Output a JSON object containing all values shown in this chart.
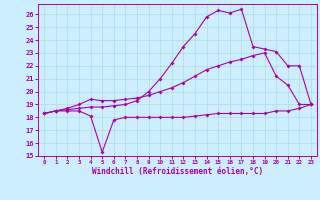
{
  "xlabel": "Windchill (Refroidissement éolien,°C)",
  "bg_color": "#cceeff",
  "line_color": "#aa00aa",
  "grid_color": "#aadddd",
  "xlim": [
    -0.5,
    23.5
  ],
  "ylim": [
    15,
    26.8
  ],
  "xticks": [
    0,
    1,
    2,
    3,
    4,
    5,
    6,
    7,
    8,
    9,
    10,
    11,
    12,
    13,
    14,
    15,
    16,
    17,
    18,
    19,
    20,
    21,
    22,
    23
  ],
  "yticks": [
    15,
    16,
    17,
    18,
    19,
    20,
    21,
    22,
    23,
    24,
    25,
    26
  ],
  "line1_x": [
    0,
    1,
    2,
    3,
    4,
    5,
    6,
    7,
    8,
    9,
    10,
    11,
    12,
    13,
    14,
    15,
    16,
    17,
    18,
    19,
    20,
    21,
    22,
    23
  ],
  "line1_y": [
    18.3,
    18.5,
    18.5,
    18.5,
    18.1,
    15.3,
    17.8,
    18.0,
    18.0,
    18.0,
    18.0,
    18.0,
    18.0,
    18.1,
    18.2,
    18.3,
    18.3,
    18.3,
    18.3,
    18.3,
    18.5,
    18.5,
    18.7,
    19.0
  ],
  "line2_x": [
    0,
    1,
    2,
    3,
    4,
    5,
    6,
    7,
    8,
    9,
    10,
    11,
    12,
    13,
    14,
    15,
    16,
    17,
    18,
    19,
    20,
    21,
    22,
    23
  ],
  "line2_y": [
    18.3,
    18.5,
    18.7,
    19.0,
    19.4,
    19.3,
    19.3,
    19.4,
    19.5,
    19.7,
    20.0,
    20.3,
    20.7,
    21.2,
    21.7,
    22.0,
    22.3,
    22.5,
    22.8,
    23.0,
    21.2,
    20.5,
    19.0,
    19.0
  ],
  "line3_x": [
    0,
    1,
    2,
    3,
    4,
    5,
    6,
    7,
    8,
    9,
    10,
    11,
    12,
    13,
    14,
    15,
    16,
    17,
    18,
    19,
    20,
    21,
    22,
    23
  ],
  "line3_y": [
    18.3,
    18.5,
    18.6,
    18.7,
    18.8,
    18.8,
    18.9,
    19.0,
    19.3,
    20.0,
    21.0,
    22.2,
    23.5,
    24.5,
    25.8,
    26.3,
    26.1,
    26.4,
    23.5,
    23.3,
    23.1,
    22.0,
    22.0,
    19.0
  ]
}
